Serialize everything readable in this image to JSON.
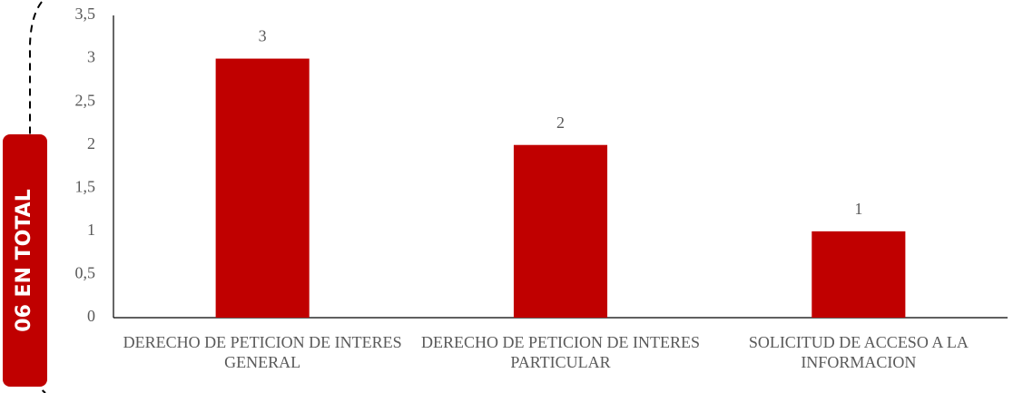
{
  "badge": "06 EN TOTAL",
  "chart_data": {
    "type": "bar",
    "categories": [
      "DERECHO DE PETICION DE INTERES GENERAL",
      "DERECHO DE PETICION DE INTERES PARTICULAR",
      "SOLICITUD DE ACCESO A LA INFORMACION"
    ],
    "values": [
      3,
      2,
      1
    ],
    "color": "#c00000",
    "ylim": [
      0,
      3.5
    ],
    "yticks": [
      0,
      {
        "value": 0.5,
        "label": "0,5"
      },
      1,
      {
        "value": 1.5,
        "label": "1,5"
      },
      2,
      {
        "value": 2.5,
        "label": "2,5"
      },
      3,
      {
        "value": 3.5,
        "label": "3,5"
      }
    ],
    "grid": false
  }
}
